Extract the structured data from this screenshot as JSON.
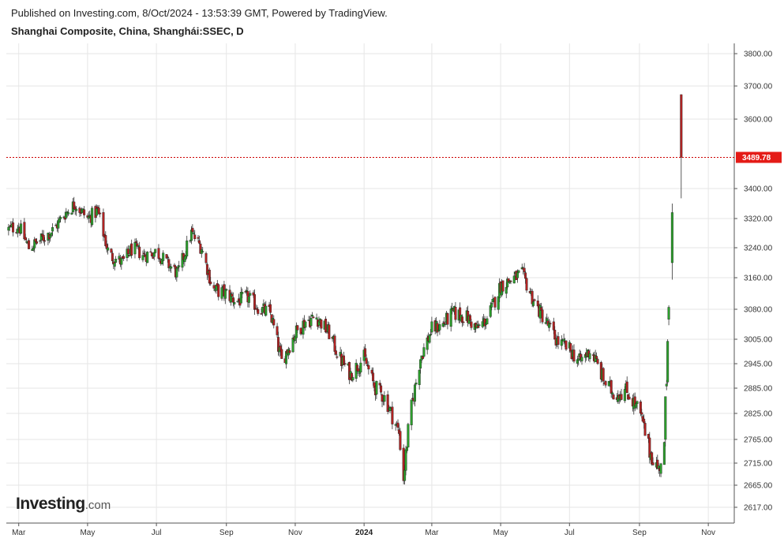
{
  "header": {
    "published": "Published on Investing.com, 8/Oct/2024 - 13:53:39 GMT, Powered by TradingView.",
    "title": "Shanghai Composite, China, Shanghái:SSEC, D"
  },
  "logo": {
    "brand": "Investing",
    "suffix": ".com"
  },
  "colors": {
    "up": "#2ca02c",
    "down": "#b22222",
    "wick": "#333333",
    "grid": "#e6e6e6",
    "price_line": "#cc0000",
    "price_label_bg": "#e41b17"
  },
  "chart_data": {
    "type": "candlestick",
    "title": "Shanghai Composite, China, Shanghái:SSEC, D",
    "current_price": 3489.78,
    "current_price_label": "3489.78",
    "y_ticks": [
      3800,
      3700,
      3600,
      3400,
      3320,
      3240,
      3160,
      3080,
      3005,
      2945,
      2885,
      2825,
      2765,
      2715,
      2665,
      2617
    ],
    "y_tick_labels": [
      "3800.00",
      "3700.00",
      "3600.00",
      "3400.00",
      "3320.00",
      "3240.00",
      "3160.00",
      "3080.00",
      "3005.00",
      "2945.00",
      "2885.00",
      "2825.00",
      "2765.00",
      "2715.00",
      "2665.00",
      "2617.00"
    ],
    "x_labels": [
      {
        "label": "Mar",
        "date": "2023-03-01"
      },
      {
        "label": "May",
        "date": "2023-05-01"
      },
      {
        "label": "Jul",
        "date": "2023-07-01"
      },
      {
        "label": "Sep",
        "date": "2023-09-01"
      },
      {
        "label": "Nov",
        "date": "2023-11-01"
      },
      {
        "label": "2024",
        "date": "2024-01-01",
        "bold": true
      },
      {
        "label": "Mar",
        "date": "2024-03-01"
      },
      {
        "label": "May",
        "date": "2024-05-01"
      },
      {
        "label": "Jul",
        "date": "2024-07-01"
      },
      {
        "label": "Sep",
        "date": "2024-09-01"
      },
      {
        "label": "Nov",
        "date": "2024-11-01"
      }
    ],
    "x_range": [
      "2023-02-18",
      "2024-11-24"
    ],
    "grid": true,
    "close_path": [
      [
        "2023-02-20",
        3290
      ],
      [
        "2023-03-01",
        3300
      ],
      [
        "2023-03-10",
        3240
      ],
      [
        "2023-03-20",
        3260
      ],
      [
        "2023-04-01",
        3290
      ],
      [
        "2023-04-10",
        3330
      ],
      [
        "2023-04-20",
        3360
      ],
      [
        "2023-05-01",
        3320
      ],
      [
        "2023-05-10",
        3340
      ],
      [
        "2023-05-20",
        3220
      ],
      [
        "2023-06-01",
        3200
      ],
      [
        "2023-06-10",
        3240
      ],
      [
        "2023-06-20",
        3220
      ],
      [
        "2023-07-01",
        3230
      ],
      [
        "2023-07-10",
        3200
      ],
      [
        "2023-07-20",
        3170
      ],
      [
        "2023-08-01",
        3280
      ],
      [
        "2023-08-10",
        3240
      ],
      [
        "2023-08-20",
        3130
      ],
      [
        "2023-09-01",
        3120
      ],
      [
        "2023-09-10",
        3100
      ],
      [
        "2023-09-20",
        3110
      ],
      [
        "2023-10-01",
        3080
      ],
      [
        "2023-10-10",
        3070
      ],
      [
        "2023-10-20",
        2950
      ],
      [
        "2023-11-01",
        3020
      ],
      [
        "2023-11-10",
        3050
      ],
      [
        "2023-11-20",
        3060
      ],
      [
        "2023-12-01",
        3020
      ],
      [
        "2023-12-10",
        2960
      ],
      [
        "2023-12-20",
        2920
      ],
      [
        "2024-01-01",
        2960
      ],
      [
        "2024-01-10",
        2890
      ],
      [
        "2024-01-20",
        2860
      ],
      [
        "2024-02-01",
        2780
      ],
      [
        "2024-02-05",
        2680
      ],
      [
        "2024-02-10",
        2810
      ],
      [
        "2024-02-20",
        2960
      ],
      [
        "2024-03-01",
        3030
      ],
      [
        "2024-03-10",
        3040
      ],
      [
        "2024-03-20",
        3070
      ],
      [
        "2024-04-01",
        3060
      ],
      [
        "2024-04-10",
        3030
      ],
      [
        "2024-04-20",
        3060
      ],
      [
        "2024-05-01",
        3140
      ],
      [
        "2024-05-10",
        3155
      ],
      [
        "2024-05-20",
        3170
      ],
      [
        "2024-06-01",
        3090
      ],
      [
        "2024-06-10",
        3050
      ],
      [
        "2024-06-20",
        3000
      ],
      [
        "2024-07-01",
        2980
      ],
      [
        "2024-07-10",
        2950
      ],
      [
        "2024-07-20",
        2980
      ],
      [
        "2024-08-01",
        2900
      ],
      [
        "2024-08-10",
        2870
      ],
      [
        "2024-08-20",
        2880
      ],
      [
        "2024-09-01",
        2830
      ],
      [
        "2024-09-10",
        2740
      ],
      [
        "2024-09-18",
        2700
      ],
      [
        "2024-09-23",
        2750
      ],
      [
        "2024-09-25",
        2890
      ],
      [
        "2024-09-27",
        3000
      ],
      [
        "2024-09-30",
        3336
      ],
      [
        "2024-10-08",
        3489.78
      ]
    ],
    "final_candles": [
      {
        "date": "2024-09-24",
        "open": 2765,
        "high": 2865,
        "low": 2750,
        "close": 2865
      },
      {
        "date": "2024-09-25",
        "open": 2890,
        "high": 2905,
        "low": 2880,
        "close": 2895
      },
      {
        "date": "2024-09-26",
        "open": 2900,
        "high": 3005,
        "low": 2895,
        "close": 3000
      },
      {
        "date": "2024-09-27",
        "open": 3055,
        "high": 3090,
        "low": 3040,
        "close": 3085
      },
      {
        "date": "2024-09-30",
        "open": 3200,
        "high": 3360,
        "low": 3155,
        "close": 3336
      },
      {
        "date": "2024-10-08",
        "open": 3674,
        "high": 3674,
        "low": 3374,
        "close": 3489.78
      }
    ]
  }
}
